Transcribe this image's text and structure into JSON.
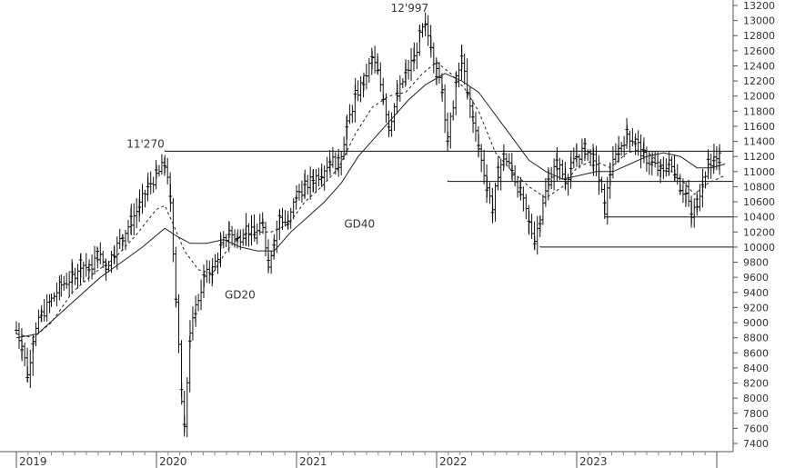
{
  "chart_data": {
    "type": "ohlc-line",
    "x_axis": {
      "labels": [
        "2019",
        "2020",
        "2021",
        "2022",
        "2023"
      ],
      "start_year": 2019,
      "end_year": 2024
    },
    "y_axis": {
      "range": [
        7300,
        13200
      ],
      "ticks": [
        7400,
        7600,
        7800,
        8000,
        8200,
        8400,
        8600,
        8800,
        9000,
        9200,
        9400,
        9600,
        9800,
        10000,
        10200,
        10400,
        10600,
        10800,
        11000,
        11200,
        11400,
        11600,
        11800,
        12000,
        12200,
        12400,
        12600,
        12800,
        13000,
        13200
      ],
      "position": "right",
      "grid": false
    },
    "price_series": [
      {
        "x": 2019.0,
        "y": 8900
      },
      {
        "x": 2019.04,
        "y": 8700
      },
      {
        "x": 2019.08,
        "y": 8300
      },
      {
        "x": 2019.12,
        "y": 8800
      },
      {
        "x": 2019.18,
        "y": 9100
      },
      {
        "x": 2019.25,
        "y": 9300
      },
      {
        "x": 2019.32,
        "y": 9500
      },
      {
        "x": 2019.4,
        "y": 9600
      },
      {
        "x": 2019.46,
        "y": 9800
      },
      {
        "x": 2019.52,
        "y": 9700
      },
      {
        "x": 2019.58,
        "y": 9900
      },
      {
        "x": 2019.64,
        "y": 9750
      },
      {
        "x": 2019.7,
        "y": 9950
      },
      {
        "x": 2019.76,
        "y": 10150
      },
      {
        "x": 2019.82,
        "y": 10350
      },
      {
        "x": 2019.88,
        "y": 10550
      },
      {
        "x": 2019.94,
        "y": 10800
      },
      {
        "x": 2020.0,
        "y": 10950
      },
      {
        "x": 2020.06,
        "y": 11100
      },
      {
        "x": 2020.1,
        "y": 10600
      },
      {
        "x": 2020.14,
        "y": 9300
      },
      {
        "x": 2020.18,
        "y": 8000
      },
      {
        "x": 2020.2,
        "y": 7700
      },
      {
        "x": 2020.24,
        "y": 8800
      },
      {
        "x": 2020.28,
        "y": 9200
      },
      {
        "x": 2020.34,
        "y": 9600
      },
      {
        "x": 2020.4,
        "y": 9700
      },
      {
        "x": 2020.46,
        "y": 10000
      },
      {
        "x": 2020.52,
        "y": 10200
      },
      {
        "x": 2020.58,
        "y": 10100
      },
      {
        "x": 2020.64,
        "y": 10250
      },
      {
        "x": 2020.7,
        "y": 10150
      },
      {
        "x": 2020.76,
        "y": 10300
      },
      {
        "x": 2020.8,
        "y": 9800
      },
      {
        "x": 2020.84,
        "y": 10100
      },
      {
        "x": 2020.88,
        "y": 10400
      },
      {
        "x": 2020.94,
        "y": 10300
      },
      {
        "x": 2021.0,
        "y": 10700
      },
      {
        "x": 2021.06,
        "y": 10800
      },
      {
        "x": 2021.12,
        "y": 10900
      },
      {
        "x": 2021.18,
        "y": 11000
      },
      {
        "x": 2021.24,
        "y": 11150
      },
      {
        "x": 2021.3,
        "y": 11100
      },
      {
        "x": 2021.36,
        "y": 11600
      },
      {
        "x": 2021.42,
        "y": 12000
      },
      {
        "x": 2021.48,
        "y": 12200
      },
      {
        "x": 2021.54,
        "y": 12500
      },
      {
        "x": 2021.58,
        "y": 12300
      },
      {
        "x": 2021.62,
        "y": 12000
      },
      {
        "x": 2021.66,
        "y": 11600
      },
      {
        "x": 2021.72,
        "y": 12000
      },
      {
        "x": 2021.78,
        "y": 12300
      },
      {
        "x": 2021.84,
        "y": 12500
      },
      {
        "x": 2021.88,
        "y": 12800
      },
      {
        "x": 2021.92,
        "y": 12900
      },
      {
        "x": 2021.96,
        "y": 12700
      },
      {
        "x": 2022.0,
        "y": 12300
      },
      {
        "x": 2022.04,
        "y": 12100
      },
      {
        "x": 2022.08,
        "y": 11400
      },
      {
        "x": 2022.14,
        "y": 12200
      },
      {
        "x": 2022.18,
        "y": 12500
      },
      {
        "x": 2022.22,
        "y": 12000
      },
      {
        "x": 2022.26,
        "y": 11700
      },
      {
        "x": 2022.3,
        "y": 11300
      },
      {
        "x": 2022.36,
        "y": 10800
      },
      {
        "x": 2022.4,
        "y": 10500
      },
      {
        "x": 2022.44,
        "y": 11000
      },
      {
        "x": 2022.48,
        "y": 11200
      },
      {
        "x": 2022.54,
        "y": 11000
      },
      {
        "x": 2022.6,
        "y": 10700
      },
      {
        "x": 2022.66,
        "y": 10300
      },
      {
        "x": 2022.7,
        "y": 10100
      },
      {
        "x": 2022.74,
        "y": 10400
      },
      {
        "x": 2022.8,
        "y": 10900
      },
      {
        "x": 2022.86,
        "y": 11100
      },
      {
        "x": 2022.92,
        "y": 10900
      },
      {
        "x": 2022.96,
        "y": 11050
      },
      {
        "x": 2023.0,
        "y": 11200
      },
      {
        "x": 2023.06,
        "y": 11300
      },
      {
        "x": 2023.12,
        "y": 11150
      },
      {
        "x": 2023.16,
        "y": 10900
      },
      {
        "x": 2023.2,
        "y": 10500
      },
      {
        "x": 2023.24,
        "y": 11000
      },
      {
        "x": 2023.3,
        "y": 11300
      },
      {
        "x": 2023.36,
        "y": 11500
      },
      {
        "x": 2023.42,
        "y": 11400
      },
      {
        "x": 2023.48,
        "y": 11200
      },
      {
        "x": 2023.54,
        "y": 11100
      },
      {
        "x": 2023.6,
        "y": 11000
      },
      {
        "x": 2023.66,
        "y": 11100
      },
      {
        "x": 2023.7,
        "y": 11000
      },
      {
        "x": 2023.74,
        "y": 10800
      },
      {
        "x": 2023.78,
        "y": 10700
      },
      {
        "x": 2023.82,
        "y": 10400
      },
      {
        "x": 2023.86,
        "y": 10600
      },
      {
        "x": 2023.9,
        "y": 10900
      },
      {
        "x": 2023.94,
        "y": 11100
      },
      {
        "x": 2023.98,
        "y": 11150
      },
      {
        "x": 2024.02,
        "y": 11200
      },
      {
        "x": 2024.06,
        "y": 11180
      }
    ],
    "gd20_series": [
      {
        "x": 2019.0,
        "y": 8850
      },
      {
        "x": 2019.12,
        "y": 8800
      },
      {
        "x": 2019.25,
        "y": 9000
      },
      {
        "x": 2019.4,
        "y": 9400
      },
      {
        "x": 2019.55,
        "y": 9650
      },
      {
        "x": 2019.7,
        "y": 9850
      },
      {
        "x": 2019.85,
        "y": 10150
      },
      {
        "x": 2020.0,
        "y": 10500
      },
      {
        "x": 2020.06,
        "y": 10550
      },
      {
        "x": 2020.12,
        "y": 10300
      },
      {
        "x": 2020.2,
        "y": 9950
      },
      {
        "x": 2020.3,
        "y": 9700
      },
      {
        "x": 2020.4,
        "y": 9650
      },
      {
        "x": 2020.5,
        "y": 9950
      },
      {
        "x": 2020.6,
        "y": 10150
      },
      {
        "x": 2020.72,
        "y": 10200
      },
      {
        "x": 2020.82,
        "y": 10200
      },
      {
        "x": 2020.94,
        "y": 10300
      },
      {
        "x": 2021.06,
        "y": 10600
      },
      {
        "x": 2021.18,
        "y": 10800
      },
      {
        "x": 2021.3,
        "y": 11050
      },
      {
        "x": 2021.42,
        "y": 11500
      },
      {
        "x": 2021.54,
        "y": 11850
      },
      {
        "x": 2021.66,
        "y": 12000
      },
      {
        "x": 2021.78,
        "y": 12050
      },
      {
        "x": 2021.9,
        "y": 12300
      },
      {
        "x": 2022.0,
        "y": 12450
      },
      {
        "x": 2022.1,
        "y": 12300
      },
      {
        "x": 2022.2,
        "y": 12100
      },
      {
        "x": 2022.3,
        "y": 11800
      },
      {
        "x": 2022.42,
        "y": 11250
      },
      {
        "x": 2022.54,
        "y": 11000
      },
      {
        "x": 2022.66,
        "y": 10800
      },
      {
        "x": 2022.78,
        "y": 10650
      },
      {
        "x": 2022.9,
        "y": 10800
      },
      {
        "x": 2023.0,
        "y": 11050
      },
      {
        "x": 2023.12,
        "y": 11150
      },
      {
        "x": 2023.24,
        "y": 11050
      },
      {
        "x": 2023.36,
        "y": 11250
      },
      {
        "x": 2023.48,
        "y": 11300
      },
      {
        "x": 2023.6,
        "y": 11100
      },
      {
        "x": 2023.72,
        "y": 10950
      },
      {
        "x": 2023.84,
        "y": 10700
      },
      {
        "x": 2023.94,
        "y": 10850
      },
      {
        "x": 2024.06,
        "y": 10950
      }
    ],
    "gd40_series": [
      {
        "x": 2019.0,
        "y": 8800
      },
      {
        "x": 2019.15,
        "y": 8850
      },
      {
        "x": 2019.3,
        "y": 9100
      },
      {
        "x": 2019.45,
        "y": 9350
      },
      {
        "x": 2019.6,
        "y": 9600
      },
      {
        "x": 2019.75,
        "y": 9800
      },
      {
        "x": 2019.9,
        "y": 10000
      },
      {
        "x": 2020.06,
        "y": 10250
      },
      {
        "x": 2020.14,
        "y": 10150
      },
      {
        "x": 2020.24,
        "y": 10050
      },
      {
        "x": 2020.36,
        "y": 10050
      },
      {
        "x": 2020.48,
        "y": 10100
      },
      {
        "x": 2020.6,
        "y": 10000
      },
      {
        "x": 2020.72,
        "y": 9950
      },
      {
        "x": 2020.84,
        "y": 9950
      },
      {
        "x": 2020.96,
        "y": 10200
      },
      {
        "x": 2021.08,
        "y": 10400
      },
      {
        "x": 2021.2,
        "y": 10600
      },
      {
        "x": 2021.32,
        "y": 10850
      },
      {
        "x": 2021.44,
        "y": 11200
      },
      {
        "x": 2021.56,
        "y": 11450
      },
      {
        "x": 2021.68,
        "y": 11700
      },
      {
        "x": 2021.8,
        "y": 11950
      },
      {
        "x": 2021.92,
        "y": 12150
      },
      {
        "x": 2022.06,
        "y": 12300
      },
      {
        "x": 2022.18,
        "y": 12200
      },
      {
        "x": 2022.3,
        "y": 12050
      },
      {
        "x": 2022.42,
        "y": 11750
      },
      {
        "x": 2022.54,
        "y": 11450
      },
      {
        "x": 2022.66,
        "y": 11150
      },
      {
        "x": 2022.78,
        "y": 11000
      },
      {
        "x": 2022.9,
        "y": 10900
      },
      {
        "x": 2023.02,
        "y": 10950
      },
      {
        "x": 2023.14,
        "y": 11000
      },
      {
        "x": 2023.26,
        "y": 11000
      },
      {
        "x": 2023.38,
        "y": 11100
      },
      {
        "x": 2023.5,
        "y": 11200
      },
      {
        "x": 2023.62,
        "y": 11250
      },
      {
        "x": 2023.74,
        "y": 11200
      },
      {
        "x": 2023.86,
        "y": 11050
      },
      {
        "x": 2023.96,
        "y": 11050
      },
      {
        "x": 2024.06,
        "y": 11100
      }
    ],
    "levels": [
      {
        "y": 11270,
        "x_start": 2020.06,
        "x_end": 2024.18
      },
      {
        "y": 10870,
        "x_start": 2022.08,
        "x_end": 2024.18
      },
      {
        "y": 10400,
        "x_start": 2023.2,
        "x_end": 2024.18
      },
      {
        "y": 10000,
        "x_start": 2022.74,
        "x_end": 2024.18
      }
    ],
    "annotations": [
      {
        "text": "11'270",
        "x": 2020.06,
        "y": 11270
      },
      {
        "text": "12'997",
        "x": 2021.92,
        "y": 12997
      },
      {
        "text": "GD20",
        "x": 2020.5,
        "y": 9560
      },
      {
        "text": "GD40",
        "x": 2021.34,
        "y": 10450
      }
    ]
  }
}
